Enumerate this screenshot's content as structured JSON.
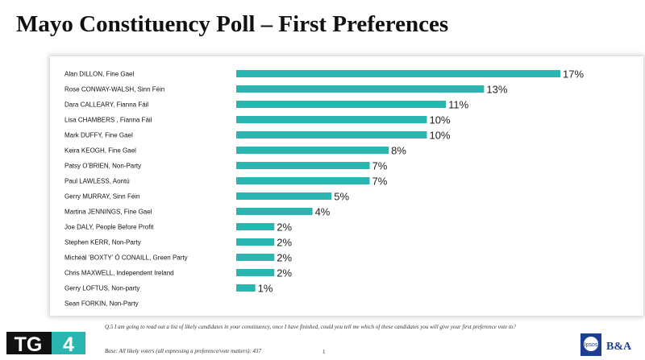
{
  "title": "Mayo Constituency Poll – First Preferences",
  "branding": {
    "broadcaster_logo_text": "TG4",
    "pollster_logo_text": "Ipsos",
    "partner_logo_text": "B&A",
    "accent_color": "#2BB5B1"
  },
  "footnote": {
    "question": "Q.5 I am going to read out a list of likely candidates in your constituency, once I have finished, could you tell me which of these candidates you will give your first preference vote to?",
    "base": "Base: All likely voters (all expressing a preference/vote matters): 437",
    "page_number": "1"
  },
  "chart_data": {
    "type": "bar",
    "orientation": "horizontal",
    "title": "Mayo Constituency Poll – First Preferences",
    "xlabel": "",
    "ylabel": "",
    "xlim": [
      0,
      17
    ],
    "grid": false,
    "bar_color": "#2BB5B1",
    "categories": [
      "Alan DILLON, Fine Gael",
      "Rose CONWAY-WALSH, Sinn Féin",
      "Dara CALLEARY, Fianna Fáil",
      "Lisa CHAMBERS , Fianna Fáil",
      "Mark DUFFY, Fine Gael",
      "Keira KEOGH, Fine Gael",
      "Patsy O’BRIEN, Non-Party",
      "Paul LAWLESS, Aontú",
      "Gerry MURRAY, Sinn Féin",
      "Martina JENNINGS, Fine Gael",
      "Joe DALY, People Before Profit",
      "Stephen KERR, Non-Party",
      "Michéál ‘BOXTY’ Ó CONAILL, Green Party",
      "Chris MAXWELL, Independent Ireland",
      "Gerry LOFTUS, Non-party",
      "Sean FORKIN, Non-Party"
    ],
    "values": [
      17,
      13,
      11,
      10,
      10,
      8,
      7,
      7,
      5,
      4,
      2,
      2,
      2,
      2,
      1,
      null
    ],
    "data_labels": [
      "17%",
      "13%",
      "11%",
      "10%",
      "10%",
      "8%",
      "7%",
      "7%",
      "5%",
      "4%",
      "2%",
      "2%",
      "2%",
      "2%",
      "1%",
      ""
    ]
  }
}
